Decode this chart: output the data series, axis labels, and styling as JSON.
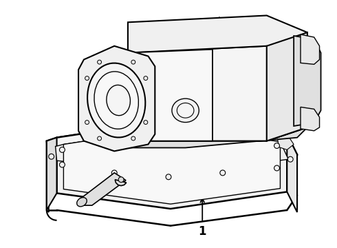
{
  "background_color": "#ffffff",
  "line_color": "#000000",
  "label": "1",
  "figsize": [
    4.9,
    3.6
  ],
  "dpi": 100
}
